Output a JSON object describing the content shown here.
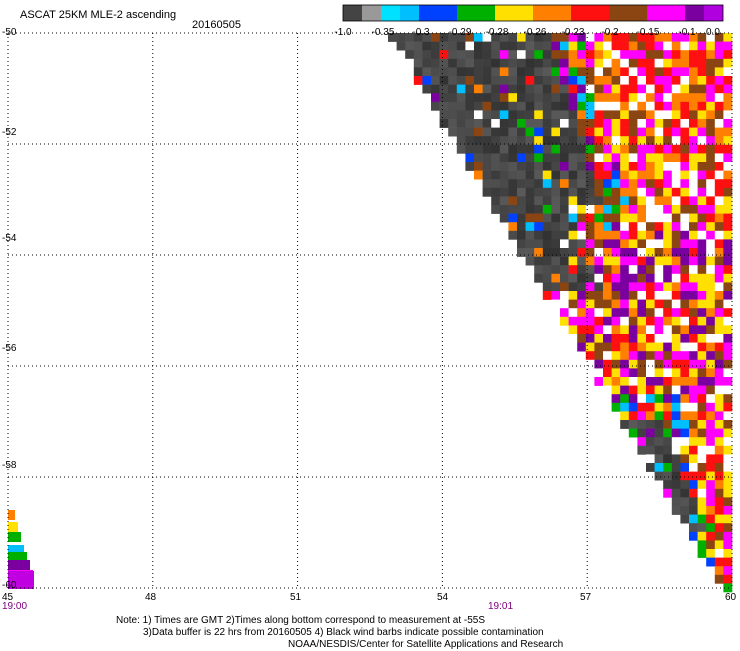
{
  "header": {
    "title": "ASCAT 25KM MLE-2 ascending",
    "date": "20160505"
  },
  "colorbar": {
    "labels": [
      "-1.0",
      "-0.35",
      "-0.3",
      "-0.29",
      "-0.28",
      "-0.26",
      "-0.23",
      "-0.2",
      "-0.15",
      "-0.1",
      "0.0"
    ],
    "colors": [
      "#333333",
      "#00bfff",
      "#0040ff",
      "#00b000",
      "#ffe000",
      "#ff8000",
      "#ff1010",
      "#8b4513",
      "#ff00ff",
      "#7a00a0"
    ]
  },
  "axes": {
    "y_labels": [
      "-50",
      "-52",
      "-54",
      "-56",
      "-58",
      "-60"
    ],
    "x_labels": [
      "45",
      "48",
      "51",
      "54",
      "57",
      "60"
    ],
    "time_labels": [
      "19:00",
      "19:01"
    ]
  },
  "chart_data": {
    "type": "heatmap",
    "title": "ASCAT 25KM MLE-2 ascending",
    "xlim": [
      45,
      60
    ],
    "ylim": [
      -60,
      -50
    ],
    "grid": true,
    "colorbar_levels": [
      -1.0,
      -0.35,
      -0.3,
      -0.29,
      -0.28,
      -0.26,
      -0.23,
      -0.2,
      -0.15,
      -0.1,
      0.0
    ]
  },
  "notes": {
    "line1": "Note: 1) Times are GMT 2)Times along bottom correspond to measurement at -55S",
    "line2": "3)Data buffer is 22 hrs from 20160505 4) Black wind barbs indicate possible contamination",
    "line3": "NOAA/NESDIS/Center for Satellite Applications and Research"
  }
}
